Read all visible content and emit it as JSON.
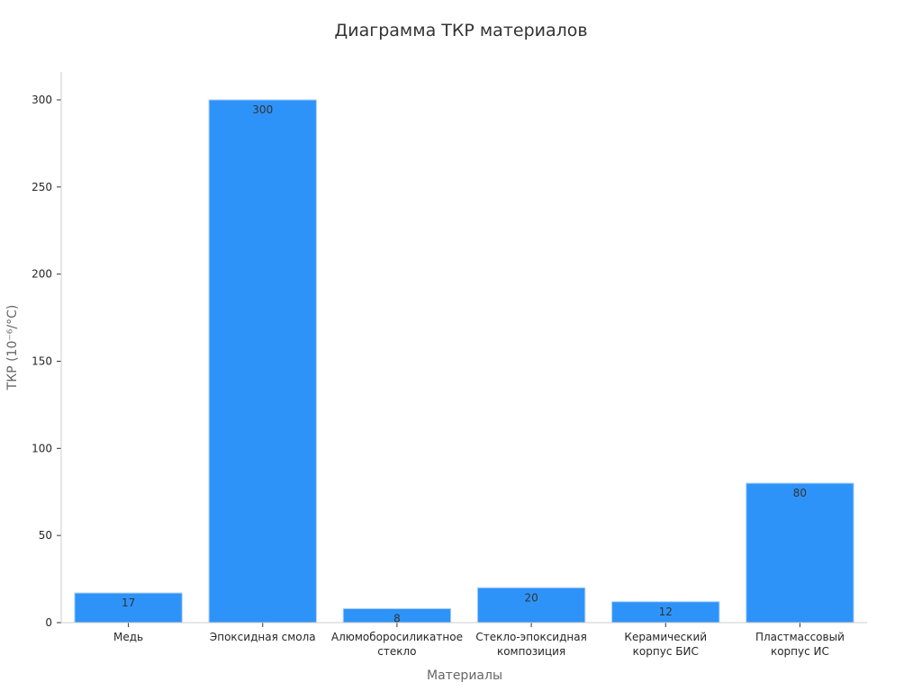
{
  "chart_data": {
    "type": "bar",
    "title": "Диаграмма ТКР материалов",
    "xlabel": "Материалы",
    "ylabel": "ТКР (10⁻⁶/°C)",
    "categories": [
      [
        "Медь"
      ],
      [
        "Эпоксидная смола"
      ],
      [
        "Алюмоборосиликатное",
        "стекло"
      ],
      [
        "Стекло-эпоксидная",
        "композиция"
      ],
      [
        "Керамический",
        "корпус БИС"
      ],
      [
        "Пластмассовый",
        "корпус ИС"
      ]
    ],
    "values": [
      17,
      300,
      8,
      20,
      12,
      80
    ],
    "data_labels": [
      "17",
      "300",
      "8",
      "20",
      "12",
      "80"
    ],
    "ylim": [
      0,
      316
    ],
    "yticks": [
      0,
      50,
      100,
      150,
      200,
      250,
      300
    ],
    "grid": false,
    "legend": "none",
    "colors": {
      "bar": "#2e93f8",
      "bar_edge": "#a9cffb",
      "axis": "#cccccc"
    }
  }
}
